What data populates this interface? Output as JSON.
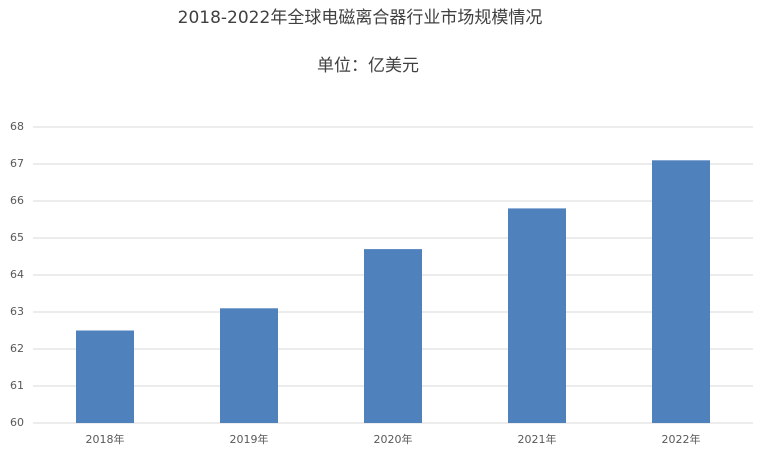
{
  "chart_data": {
    "type": "bar",
    "title": "2018-2022年全球电磁离合器行业市场规模情况",
    "subtitle": "单位：亿美元",
    "categories": [
      "2018年",
      "2019年",
      "2020年",
      "2021年",
      "2022年"
    ],
    "values": [
      62.5,
      63.1,
      64.7,
      65.8,
      67.1
    ],
    "color": "#4f81bd",
    "ylim": [
      60,
      68
    ],
    "yticks": [
      60,
      61,
      62,
      63,
      64,
      65,
      66,
      67,
      68
    ],
    "grid": true
  }
}
